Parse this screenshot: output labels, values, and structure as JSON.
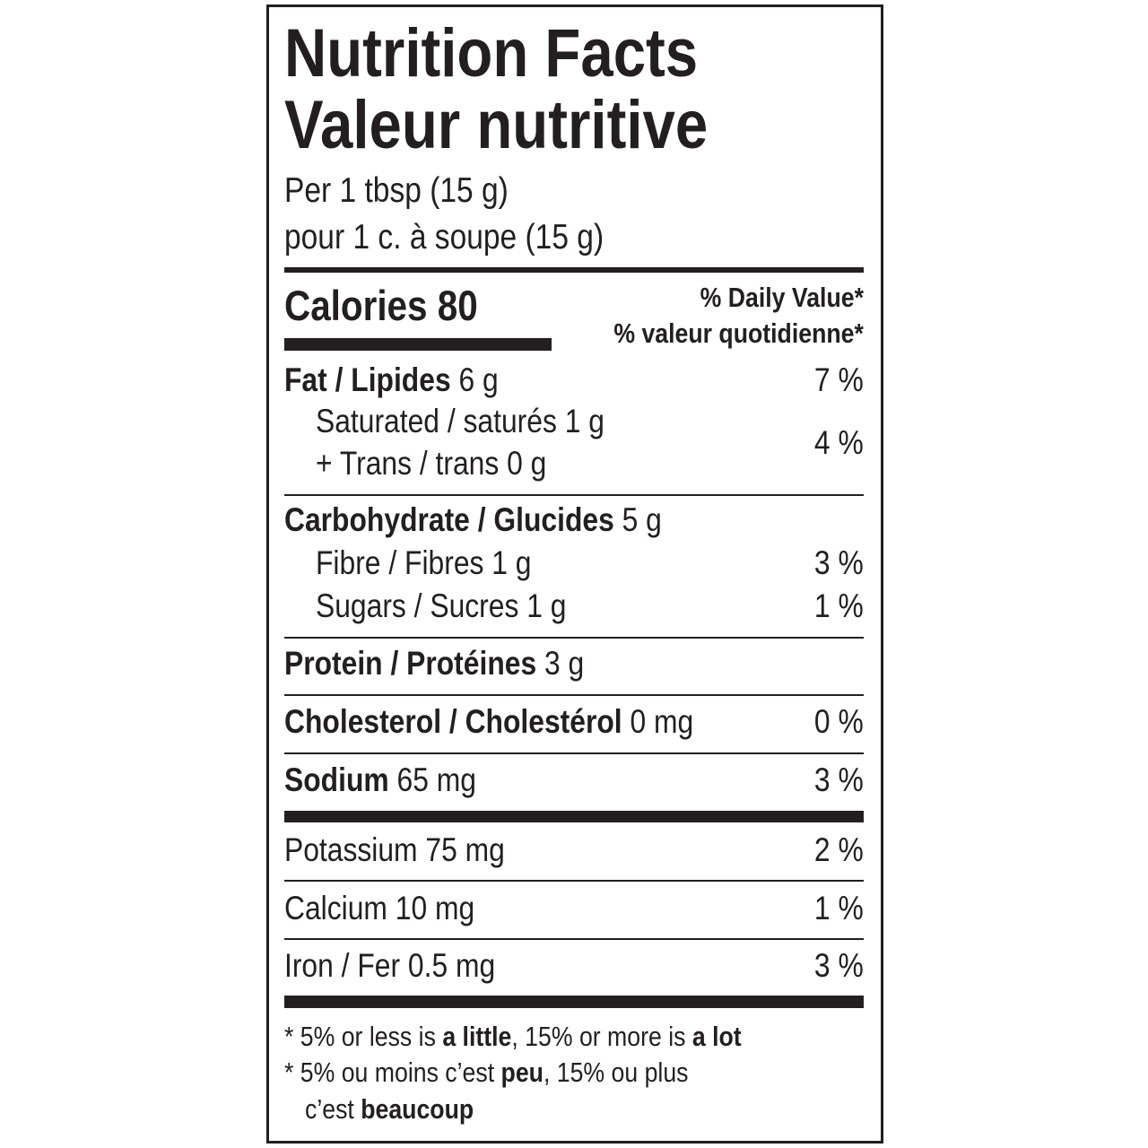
{
  "title_en": "Nutrition Facts",
  "title_fr": "Valeur nutritive",
  "serving_en": "Per 1 tbsp (15 g)",
  "serving_fr": "pour 1 c. à soupe (15 g)",
  "calories_label": "Calories",
  "calories_value": "80",
  "dv_header_en": "% Daily Value*",
  "dv_header_fr": "% valeur quotidienne*",
  "nutrients": {
    "fat": {
      "label": "Fat / Lipides",
      "amount": "6 g",
      "dv": "7 %"
    },
    "saturated": {
      "label": "Saturated / saturés 1 g"
    },
    "trans": {
      "label": "+ Trans / trans 0 g"
    },
    "sat_trans_dv": "4 %",
    "carbohydrate": {
      "label": "Carbohydrate / Glucides",
      "amount": "5 g"
    },
    "fibre": {
      "label": "Fibre / Fibres 1 g",
      "dv": "3 %"
    },
    "sugars": {
      "label": "Sugars / Sucres 1 g",
      "dv": "1 %"
    },
    "protein": {
      "label": "Protein / Protéines",
      "amount": "3 g"
    },
    "cholesterol": {
      "label": "Cholesterol / Cholestérol",
      "amount": "0 mg",
      "dv": "0 %"
    },
    "sodium": {
      "label": "Sodium",
      "amount": "65 mg",
      "dv": "3 %"
    },
    "potassium": {
      "label": "Potassium 75 mg",
      "dv": "2 %"
    },
    "calcium": {
      "label": "Calcium 10 mg",
      "dv": "1 %"
    },
    "iron": {
      "label": "Iron / Fer 0.5 mg",
      "dv": "3 %"
    }
  },
  "footnote": {
    "en": {
      "a": "* 5% or less is ",
      "b": "a little",
      "c": ", 15% or more is ",
      "d": "a lot"
    },
    "fr": {
      "a": "* 5% ou moins c’est ",
      "b": "peu",
      "c": ", 15% ou plus",
      "d": "c’est ",
      "e": "beaucoup"
    }
  }
}
